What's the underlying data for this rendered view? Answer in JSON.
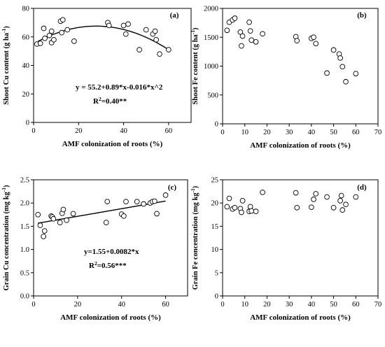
{
  "chart_data": [
    {
      "type": "scatter",
      "panel_label": "(a)",
      "xlabel": "AMF colonization of roots (%)",
      "ylabel_main": "Shoot Cu content (g ha",
      "ylabel_sup": "-1",
      "ylabel_end": ")",
      "xlim": [
        0,
        70
      ],
      "ylim": [
        0,
        80
      ],
      "xticks": [
        0,
        20,
        40,
        60
      ],
      "yticks": [
        0,
        20,
        40,
        60,
        80
      ],
      "xtick_labels": [
        "0",
        "20",
        "40",
        "60"
      ],
      "ytick_labels": [
        "0",
        "20",
        "40",
        "60",
        "80"
      ],
      "equation": "y = 55.2+0.89*x-0.016*x^2",
      "r2_text": "R",
      "r2_sup": "2",
      "r2_value": "=0.40**",
      "fit": {
        "kind": "quadratic",
        "a": 55.2,
        "b": 0.89,
        "c": -0.016,
        "x_range": [
          2,
          60
        ]
      },
      "points": [
        {
          "x": 1.5,
          "y": 55
        },
        {
          "x": 3,
          "y": 55.5
        },
        {
          "x": 4.5,
          "y": 66
        },
        {
          "x": 5,
          "y": 59
        },
        {
          "x": 7,
          "y": 61
        },
        {
          "x": 8,
          "y": 56
        },
        {
          "x": 8,
          "y": 64
        },
        {
          "x": 9,
          "y": 58
        },
        {
          "x": 12,
          "y": 71
        },
        {
          "x": 12.5,
          "y": 63
        },
        {
          "x": 13,
          "y": 72
        },
        {
          "x": 15,
          "y": 65
        },
        {
          "x": 18,
          "y": 57
        },
        {
          "x": 33,
          "y": 70
        },
        {
          "x": 33.5,
          "y": 68
        },
        {
          "x": 40,
          "y": 68
        },
        {
          "x": 41,
          "y": 62
        },
        {
          "x": 42,
          "y": 69
        },
        {
          "x": 47,
          "y": 51
        },
        {
          "x": 50,
          "y": 65
        },
        {
          "x": 53,
          "y": 62
        },
        {
          "x": 54,
          "y": 64
        },
        {
          "x": 54.5,
          "y": 58
        },
        {
          "x": 56,
          "y": 48
        },
        {
          "x": 60,
          "y": 51
        }
      ]
    },
    {
      "type": "scatter",
      "panel_label": "(b)",
      "xlabel": "AMF colonization of roots (%)",
      "ylabel_main": "Shoot Fe content (g ha",
      "ylabel_sup": "-1",
      "ylabel_end": ")",
      "xlim": [
        0,
        70
      ],
      "ylim": [
        0,
        2000
      ],
      "xticks": [
        0,
        10,
        20,
        30,
        40,
        50,
        60,
        70
      ],
      "yticks": [
        0,
        500,
        1000,
        1500,
        2000
      ],
      "xtick_labels": [
        "0",
        "10",
        "20",
        "30",
        "40",
        "50",
        "60",
        "70"
      ],
      "ytick_labels": [
        "0",
        "500",
        "1000",
        "1500",
        "2000"
      ],
      "points": [
        {
          "x": 2,
          "y": 1620
        },
        {
          "x": 3,
          "y": 1760
        },
        {
          "x": 4.5,
          "y": 1800
        },
        {
          "x": 5.5,
          "y": 1830
        },
        {
          "x": 8,
          "y": 1590
        },
        {
          "x": 8.5,
          "y": 1350
        },
        {
          "x": 9,
          "y": 1520
        },
        {
          "x": 12,
          "y": 1760
        },
        {
          "x": 12.5,
          "y": 1610
        },
        {
          "x": 13,
          "y": 1450
        },
        {
          "x": 15,
          "y": 1420
        },
        {
          "x": 18,
          "y": 1560
        },
        {
          "x": 33,
          "y": 1510
        },
        {
          "x": 33.5,
          "y": 1440
        },
        {
          "x": 40,
          "y": 1480
        },
        {
          "x": 41,
          "y": 1500
        },
        {
          "x": 42,
          "y": 1390
        },
        {
          "x": 47,
          "y": 880
        },
        {
          "x": 50,
          "y": 1280
        },
        {
          "x": 52.5,
          "y": 1210
        },
        {
          "x": 53,
          "y": 1140
        },
        {
          "x": 54,
          "y": 990
        },
        {
          "x": 55.5,
          "y": 730
        },
        {
          "x": 60,
          "y": 870
        }
      ]
    },
    {
      "type": "scatter",
      "panel_label": "(c)",
      "xlabel": "AMF colonization of roots (%)",
      "ylabel_main": "Grain Cu concentration (mg kg",
      "ylabel_sup": "-1",
      "ylabel_end": ")",
      "xlim": [
        0,
        70
      ],
      "ylim": [
        0,
        2.5
      ],
      "xticks": [
        0,
        20,
        40,
        60
      ],
      "yticks": [
        0,
        0.5,
        1.0,
        1.5,
        2.0,
        2.5
      ],
      "xtick_labels": [
        "0",
        "20",
        "40",
        "60"
      ],
      "ytick_labels": [
        "0.0",
        "0.5",
        "1.0",
        "1.5",
        "2.0",
        "2.5"
      ],
      "equation": "y=1.55+0.0082*x",
      "r2_text": "R",
      "r2_sup": "2",
      "r2_value": "=0.56***",
      "fit": {
        "kind": "linear",
        "a": 1.55,
        "b": 0.0082,
        "x_range": [
          2,
          60
        ]
      },
      "points": [
        {
          "x": 2,
          "y": 1.75
        },
        {
          "x": 3,
          "y": 1.52
        },
        {
          "x": 4.5,
          "y": 1.28
        },
        {
          "x": 5,
          "y": 1.4
        },
        {
          "x": 8,
          "y": 1.72
        },
        {
          "x": 8.5,
          "y": 1.7
        },
        {
          "x": 9,
          "y": 1.66
        },
        {
          "x": 12,
          "y": 1.58
        },
        {
          "x": 13,
          "y": 1.78
        },
        {
          "x": 13.5,
          "y": 1.86
        },
        {
          "x": 15,
          "y": 1.63
        },
        {
          "x": 18,
          "y": 1.77
        },
        {
          "x": 33,
          "y": 1.58
        },
        {
          "x": 33.5,
          "y": 2.03
        },
        {
          "x": 40,
          "y": 1.76
        },
        {
          "x": 41,
          "y": 1.72
        },
        {
          "x": 42,
          "y": 2.03
        },
        {
          "x": 47,
          "y": 2.03
        },
        {
          "x": 50,
          "y": 1.98
        },
        {
          "x": 53,
          "y": 2.0
        },
        {
          "x": 54,
          "y": 2.03
        },
        {
          "x": 55,
          "y": 2.04
        },
        {
          "x": 56,
          "y": 1.77
        },
        {
          "x": 60,
          "y": 2.17
        }
      ]
    },
    {
      "type": "scatter",
      "panel_label": "(d)",
      "xlabel": "AMF colonization of roots (%)",
      "ylabel_main": "Grain Fe concentration (mg kg",
      "ylabel_sup": "-1",
      "ylabel_end": ")",
      "xlim": [
        0,
        70
      ],
      "ylim": [
        0,
        25
      ],
      "xticks": [
        0,
        10,
        20,
        30,
        40,
        50,
        60,
        70
      ],
      "yticks": [
        0,
        5,
        10,
        15,
        20,
        25
      ],
      "xtick_labels": [
        "0",
        "10",
        "20",
        "30",
        "40",
        "50",
        "60",
        "70"
      ],
      "ytick_labels": [
        "0",
        "5",
        "10",
        "15",
        "20",
        "25"
      ],
      "points": [
        {
          "x": 2,
          "y": 19.2
        },
        {
          "x": 3,
          "y": 21.0
        },
        {
          "x": 4.5,
          "y": 18.7
        },
        {
          "x": 5.5,
          "y": 19.0
        },
        {
          "x": 8,
          "y": 18.8
        },
        {
          "x": 8.5,
          "y": 18.0
        },
        {
          "x": 9,
          "y": 20.5
        },
        {
          "x": 12,
          "y": 18.2
        },
        {
          "x": 12.5,
          "y": 19.2
        },
        {
          "x": 13,
          "y": 18.3
        },
        {
          "x": 15,
          "y": 18.2
        },
        {
          "x": 18,
          "y": 22.3
        },
        {
          "x": 33,
          "y": 22.2
        },
        {
          "x": 33.5,
          "y": 19.0
        },
        {
          "x": 40,
          "y": 19.1
        },
        {
          "x": 41,
          "y": 20.8
        },
        {
          "x": 42,
          "y": 22.0
        },
        {
          "x": 47,
          "y": 21.3
        },
        {
          "x": 50,
          "y": 19.0
        },
        {
          "x": 53,
          "y": 20.5
        },
        {
          "x": 53.5,
          "y": 21.6
        },
        {
          "x": 54,
          "y": 18.5
        },
        {
          "x": 55.5,
          "y": 19.7
        },
        {
          "x": 60,
          "y": 21.3
        }
      ]
    }
  ]
}
